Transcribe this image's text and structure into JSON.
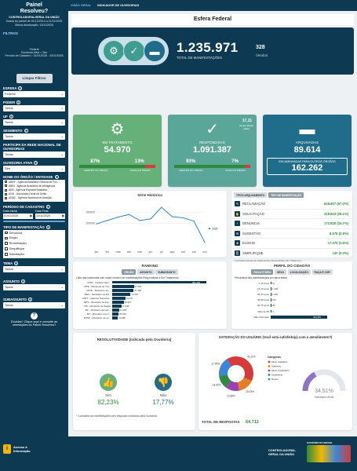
{
  "sidebar": {
    "title": "Painel Resolveu?",
    "org": "CONTROLADORIA-GERAL DA UNIÃO",
    "period_note": "Dados do painel de 01/12/2014 a 11/11/2025",
    "last_update": "Última Atualização: 13/11/2025",
    "filters_label": "FILTROS",
    "selected_filters": [
      "Federal",
      "Ouvidoria Ativa = Sim",
      "Período de Cadastro = 01/01/2025 - 10/11/2025"
    ],
    "clear_button": "Limpar Filtros",
    "esfera": {
      "label": "ESFERA",
      "value": "Federal"
    },
    "poder": {
      "label": "PODER",
      "value": "Todos"
    },
    "uf": {
      "label": "UF",
      "value": "Todos"
    },
    "segmento": {
      "label": "SEGMENTO",
      "value": "Todos"
    },
    "participa": {
      "label": "PARTICIPA DA REDE NACIONAL DE OUVIDORIAS",
      "value": "Todas"
    },
    "ouvidoria_ativa": {
      "label": "OUVIDORIA ATIVA",
      "value": "Sim"
    },
    "orgao": {
      "label": "NOME DO ÓRGÃO / ENTIDADE",
      "items": [
        "ABDF - Agência Brasileira Gestora de Fun...",
        "ABIN - Agência Brasileira de Inteligência",
        "AEB - Agência Espacial Brasileira",
        "AGU - Advocacia-Geral da União",
        "ANAC - Agência Nacional de Aviação..."
      ]
    },
    "periodo": {
      "label": "PERÍODO DE CADASTRO",
      "start_label": "Data Inicial",
      "end_label": "Data Final",
      "start": "01/01/2025",
      "end": "10/11/2025"
    },
    "tipo": {
      "label": "TIPO DE MANIFESTAÇÃO",
      "items": [
        "Denúncia",
        "Elogio",
        "Reclamação",
        "Simplifique",
        "Solicitação"
      ]
    },
    "tema": {
      "label": "TEMA",
      "value": "Todos"
    },
    "assunto": {
      "label": "ASSUNTO",
      "value": "Todos"
    },
    "subassunto": {
      "label": "SUBASSUNTO",
      "value": "Todos"
    },
    "help": "Dúvidas? Clique aqui e consulte as orientações do Painel Resolveu?",
    "access": "Acesso à Informação"
  },
  "tabs": [
    "VISÃO GERAL",
    "INDICADOR DE OUVIDORIAS"
  ],
  "header": "Esfera Federal",
  "hero": {
    "total": "1.235.971",
    "total_label": "TOTAL DE MANIFESTAÇÕES",
    "orgaos": "328",
    "orgaos_label": "ÓRGÃOS"
  },
  "cards": {
    "tratamento": {
      "label": "EM TRATAMENTO",
      "value": "54.970",
      "dentro_pct": "87%",
      "fora_pct": "13%",
      "dentro_label": "DENTRO DO PRAZO",
      "fora_label": "FORA DO PRAZO"
    },
    "respondidas": {
      "label": "RESPONDIDAS",
      "value": "1.091.387",
      "tempo": "17,11",
      "tempo_label": "Tempo Médio (dias)",
      "dentro_pct": "93%",
      "fora_pct": "7%",
      "dentro_label": "DENTRO DO PRAZO",
      "fora_label": "FORA DO PRAZO"
    },
    "arquivadas": {
      "label": "ARQUIVADAS",
      "value": "89.614",
      "enc_label": "ENCAMINHADAS PARA OUTROS ÓRGÃOS",
      "enc_value": "162.262"
    }
  },
  "chart_data": [
    {
      "type": "line",
      "title": "Série Histórica",
      "categories": [
        "jan",
        "fev",
        "mar",
        "abr",
        "mai",
        "jun",
        "jul",
        "ago",
        "set",
        "out",
        "nov"
      ],
      "series": [
        {
          "name": "2025",
          "values": [
            98000,
            113000,
            128000,
            140000,
            113000,
            120000,
            172000,
            130000,
            125000,
            110000,
            15000
          ]
        }
      ],
      "yticks": [
        "150000",
        "100000"
      ],
      "ylim": [
        0,
        190000
      ]
    },
    {
      "type": "bar",
      "title": "Lista das ouvidorias com maior número de manifestações Respondidas e Em Tratamento",
      "categories": [
        "INSS - Instituto Naci...",
        "MTE - Ministério do Tra...",
        "MCID - Ministério da ...",
        "MEC - Ministério da Ed...",
        "ANTT - Agência Nacional...",
        "MPS - Ministério da Pre...",
        "MS - Ministério da Saúde",
        "MF - Ministério da Faz...",
        "MT - Ministério dos T...",
        "MJSP - Ministério da Ju..."
      ],
      "values": [
        381233,
        87502,
        87350,
        74333,
        53327,
        46957,
        37345,
        27285,
        25439,
        23089
      ]
    },
    {
      "type": "bar",
      "title": "Percentual das manifestações por faixa etária",
      "categories": [
        "0-15 anos",
        "16-26 anos",
        "26-45 anos",
        "46-59 anos",
        "60-75 anos",
        "Mais de 80",
        "Não informado"
      ],
      "values": [
        61,
        1328,
        1006,
        193,
        38,
        4,
        494381
      ]
    },
    {
      "type": "pie",
      "title": "SATISFAÇÃO DO USUÁRIO (Você está satisfeito(a) com o atendimento?)",
      "categories": [
        "Muito Satisfeito",
        "Satisfeito",
        "Muito Insatisfeito",
        "Insatisfeito",
        "Neutro"
      ],
      "values": [
        41.11,
        15.03,
        12.89,
        13.02,
        17.95
      ]
    }
  ],
  "tipos": {
    "header_left": "TIPOS ARQUIVAMENTO",
    "header_right": "TIPO DE MANIFESTAÇÃO",
    "items": [
      {
        "name": "RECLAMAÇÃO",
        "value": "626.607 (57.0%)"
      },
      {
        "name": "SOLICITAÇÃO",
        "value": "319.823 (29.1%)"
      },
      {
        "name": "DENÚNCIA",
        "value": "172.830 (15.7%)"
      },
      {
        "name": "SUGESTÃO",
        "value": "8.578 (0.8%)"
      },
      {
        "name": "ELOGIO",
        "value": "17.374 (1.6%)"
      },
      {
        "name": "SIMPLIFIQUE",
        "value": "147 (0.0%)"
      }
    ],
    "note": "* Considera apenas as manifestações Respondidas e Em Tratamento."
  },
  "ranking": {
    "title": "RANKING",
    "tabs": [
      "ÓRGÃO",
      "ASSUNTO",
      "SUBASSUNTO"
    ],
    "labels": [
      "381.233",
      "87.502",
      "87.350",
      "74.333",
      "53.327",
      "46.957",
      "37.345",
      "27.285",
      "25.439",
      "23.089"
    ]
  },
  "perfil": {
    "title": "PERFIL DO CIDADÃO",
    "tabs": [
      "FAIXA ETÁRIA",
      "SEXO",
      "LOCALIZAÇÃO",
      "RAÇA E COR"
    ],
    "labels": [
      "61",
      "1.328",
      "1.006",
      "193",
      "38",
      "4",
      "494.381"
    ]
  },
  "resolutividade": {
    "title": "RESOLUTIVIDADE (indicada pela Ouvidoria)",
    "sim_label": "Sim",
    "sim": "82,23%",
    "nao_label": "Não",
    "nao": "17,77%",
    "note": "* Considera as manifestações com resposta conclusiva pela Ouvidoria"
  },
  "satisfacao": {
    "title": "SATISFAÇÃO DO USUÁRIO (Você está satisfeito(a) com o atendimento?)",
    "legend_title": "Categorias",
    "legend": [
      "Muito Satisfeito",
      "Satisfeito",
      "Muito Insatisfeito",
      "Insatisfeito",
      "Neutro"
    ],
    "pcts": [
      "41,11%",
      "15,03%",
      "12,89%",
      "13,02%",
      "17,95%"
    ],
    "total_label": "TOTAL DE RESPOSTAS",
    "total": "64.712",
    "gauge": "34,51%",
    "gauge_label": "Satisfação Média",
    "colors": [
      "#d63a3a",
      "#e67e22",
      "#9b3fb5",
      "#2e8b3d",
      "#3a86d6"
    ]
  },
  "footer": {
    "cgu": "CONTROLADORIA-GERAL DA UNIÃO",
    "gov": "GOVERNO DO BRASIL"
  }
}
